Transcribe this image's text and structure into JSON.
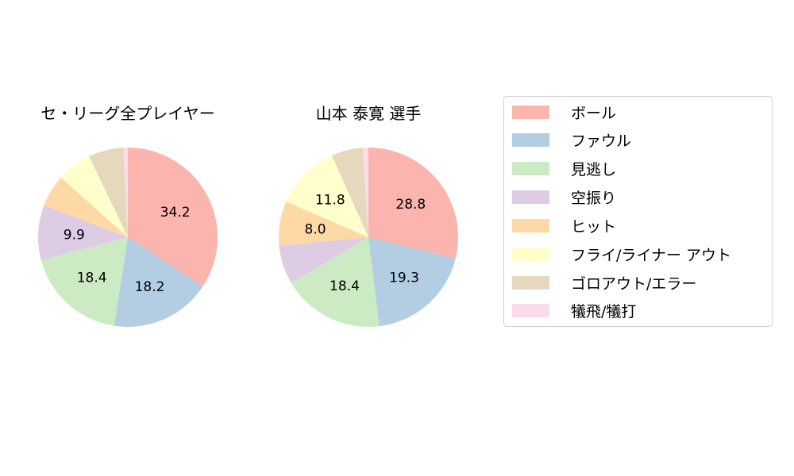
{
  "chart_data": [
    {
      "type": "pie",
      "title": "セ・リーグ全プレイヤー",
      "categories": [
        "ボール",
        "ファウル",
        "見逃し",
        "空振り",
        "ヒット",
        "フライ/ライナー アウト",
        "ゴロアウト/エラー",
        "犠飛/犠打"
      ],
      "values": [
        34.2,
        18.2,
        18.4,
        9.9,
        5.8,
        6.3,
        6.3,
        0.8
      ],
      "labels_shown": [
        "34.2",
        "18.2",
        "18.4",
        "9.9",
        "",
        "",
        "",
        ""
      ],
      "start_angle": 90,
      "direction": "clockwise"
    },
    {
      "type": "pie",
      "title": "山本 泰寛  選手",
      "categories": [
        "ボール",
        "ファウル",
        "見逃し",
        "空振り",
        "ヒット",
        "フライ/ライナー アウト",
        "ゴロアウト/エラー",
        "犠飛/犠打"
      ],
      "values": [
        28.8,
        19.3,
        18.4,
        7.0,
        8.0,
        11.8,
        5.7,
        1.0
      ],
      "labels_shown": [
        "28.8",
        "19.3",
        "18.4",
        "",
        "8.0",
        "11.8",
        "",
        ""
      ],
      "start_angle": 90,
      "direction": "clockwise"
    }
  ],
  "titles": {
    "left": "セ・リーグ全プレイヤー",
    "right": "山本 泰寛  選手"
  },
  "legend": {
    "position": "right",
    "items": [
      {
        "label": "ボール",
        "color": "#fbb4ae"
      },
      {
        "label": "ファウル",
        "color": "#b3cde3"
      },
      {
        "label": "見逃し",
        "color": "#ccebc5"
      },
      {
        "label": "空振り",
        "color": "#decbe4"
      },
      {
        "label": "ヒット",
        "color": "#fed9a6"
      },
      {
        "label": "フライ/ライナー アウト",
        "color": "#ffffcc"
      },
      {
        "label": "ゴロアウト/エラー",
        "color": "#e5d8bd"
      },
      {
        "label": "犠飛/犠打",
        "color": "#fddaec"
      }
    ]
  }
}
